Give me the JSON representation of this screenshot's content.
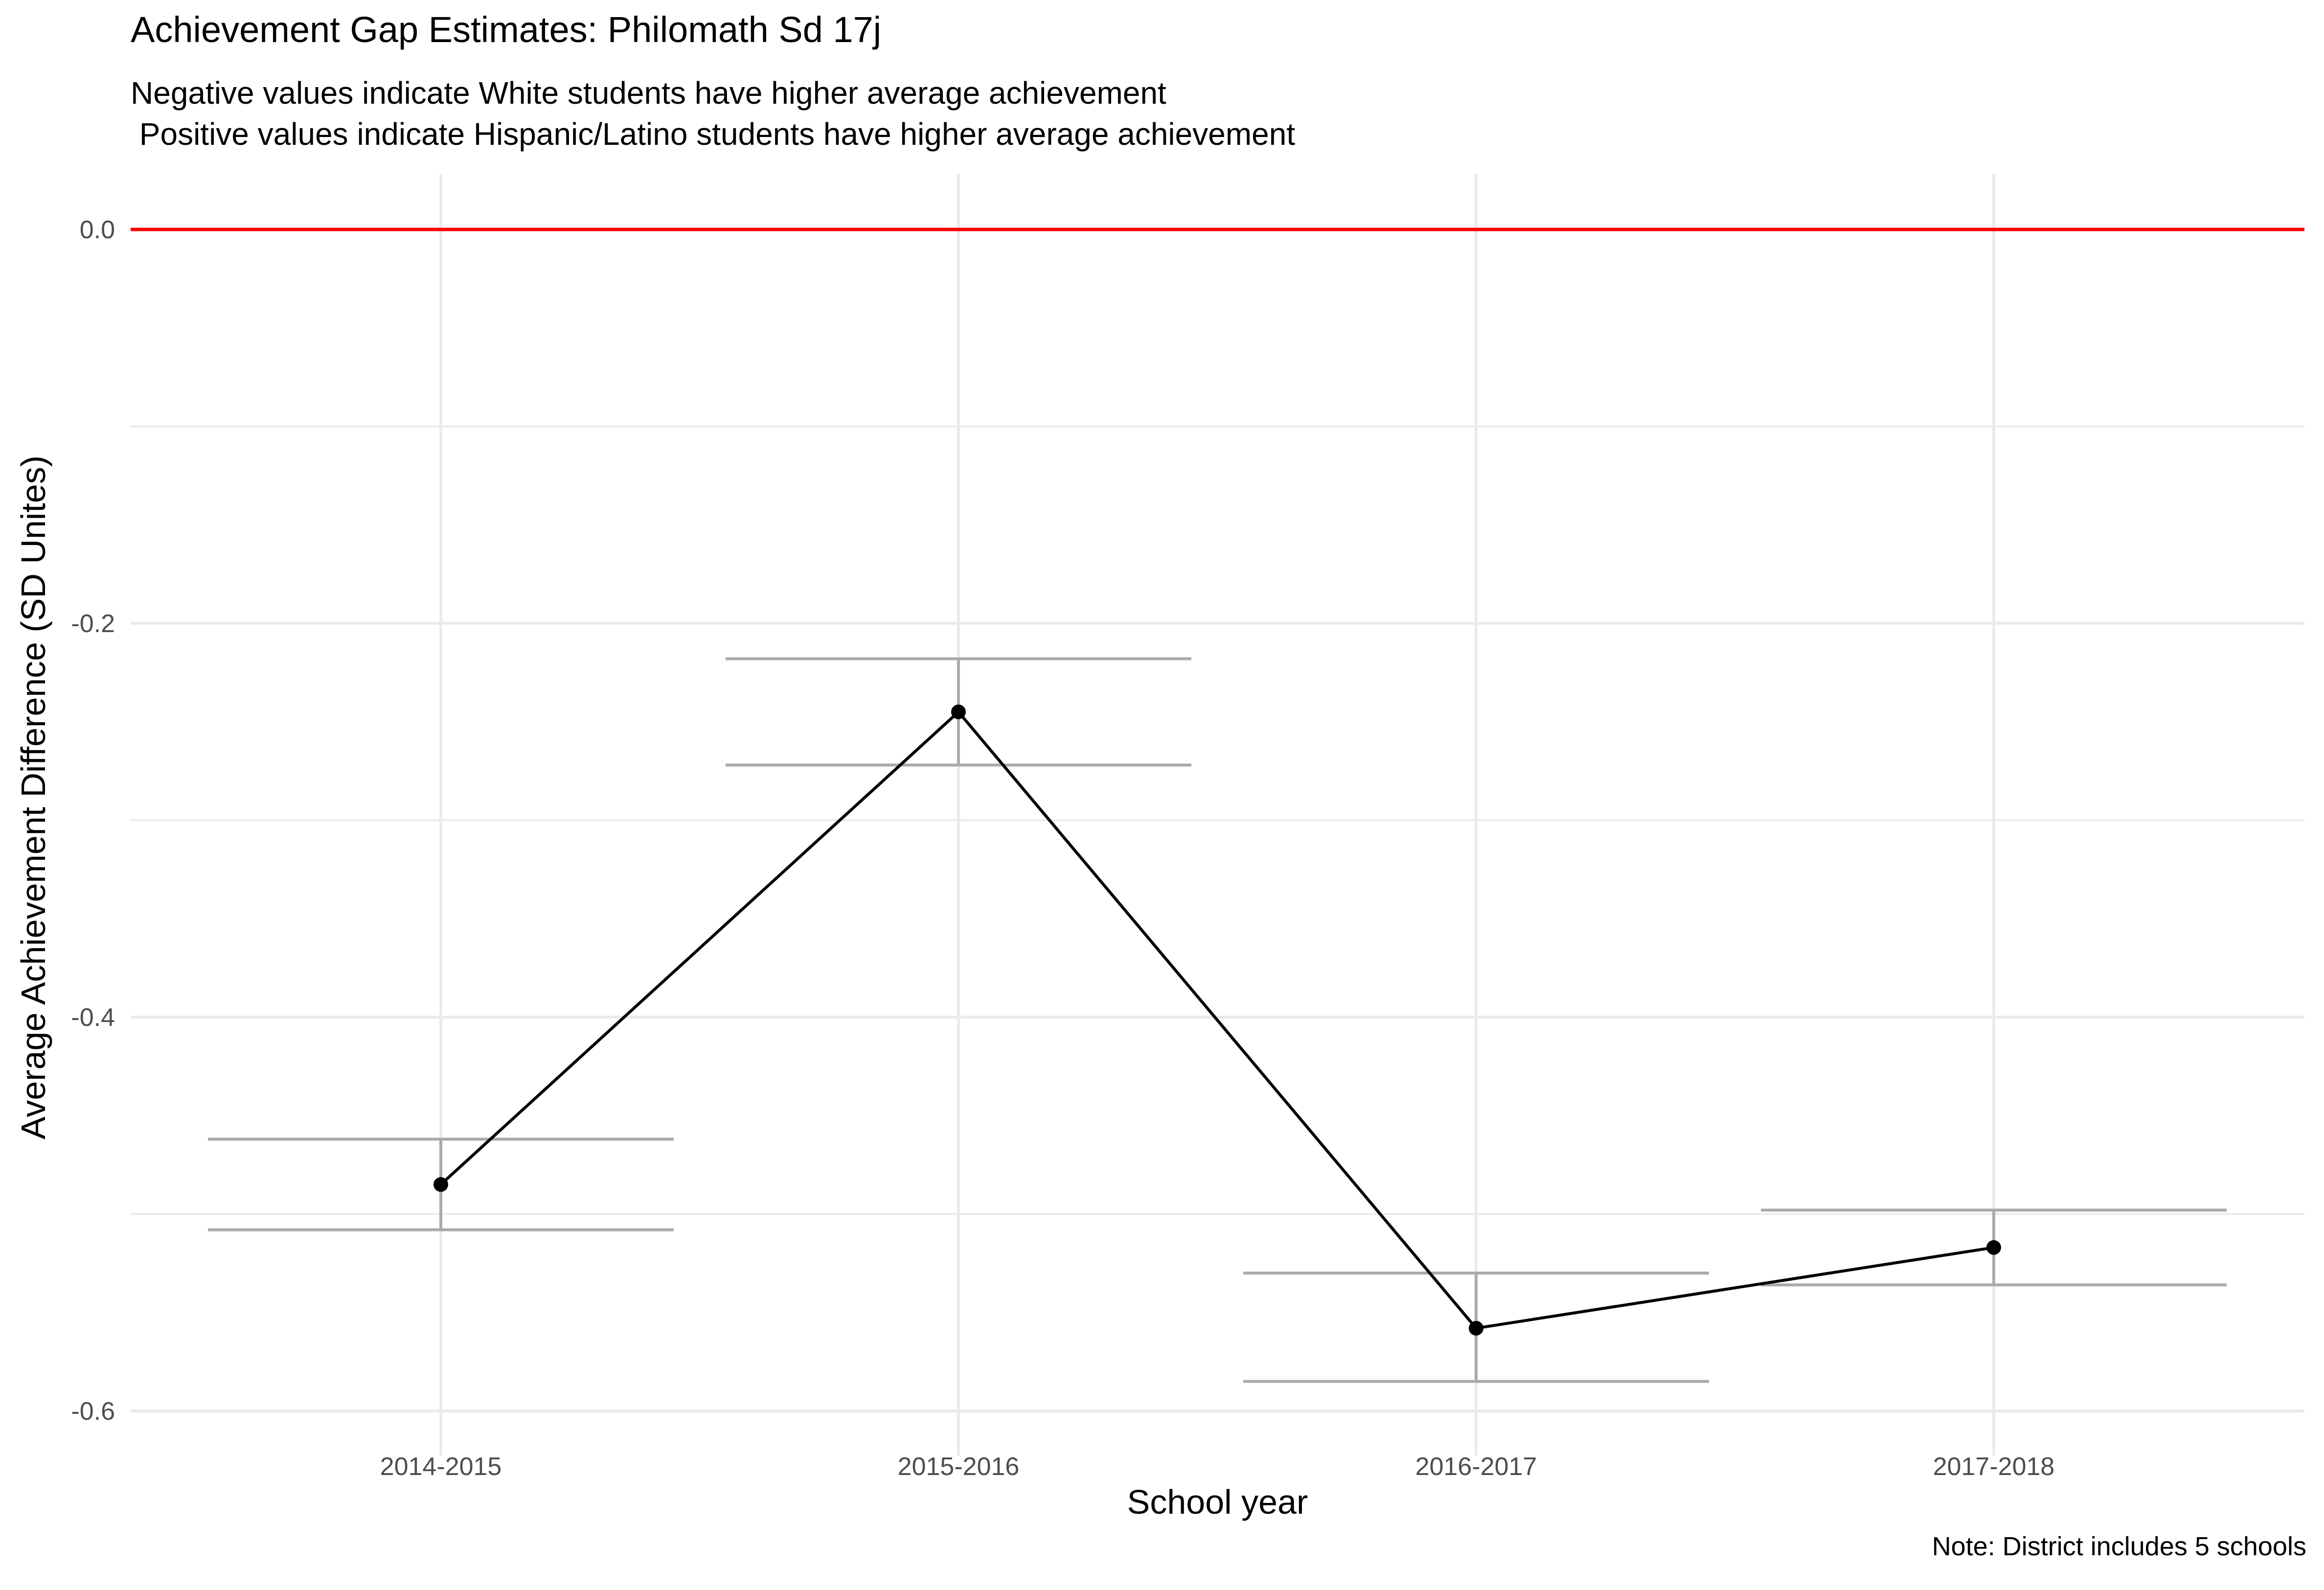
{
  "chart_data": {
    "type": "line",
    "title": "Achievement Gap Estimates: Philomath Sd 17j",
    "subtitle_lines": [
      "Negative values indicate White students have higher average achievement",
      " Positive values indicate Hispanic/Latino students have higher average achievement"
    ],
    "caption": "Note: District includes 5 schools",
    "xlabel": "School year",
    "ylabel": "Average Achievement Difference (SD Unites)",
    "categories": [
      "2014-2015",
      "2015-2016",
      "2016-2017",
      "2017-2018"
    ],
    "values": [
      -0.485,
      -0.245,
      -0.558,
      -0.517
    ],
    "error_bars": [
      {
        "low": -0.508,
        "high": -0.462
      },
      {
        "low": -0.272,
        "high": -0.218
      },
      {
        "low": -0.585,
        "high": -0.53
      },
      {
        "low": -0.536,
        "high": -0.498
      }
    ],
    "reference_line": {
      "y": 0.0,
      "color": "#ff0000"
    },
    "ylim": [
      -0.62,
      0.03
    ],
    "yticks": [
      0.0,
      -0.2,
      -0.4,
      -0.6
    ],
    "ytick_labels": [
      "0.0",
      "-0.2",
      "-0.4",
      "-0.6"
    ],
    "grid": true,
    "legend": "none",
    "colors": {
      "line": "#000000",
      "errorbar": "#aaaaaa",
      "grid": "#ebebeb",
      "reference": "#ff0000"
    }
  }
}
